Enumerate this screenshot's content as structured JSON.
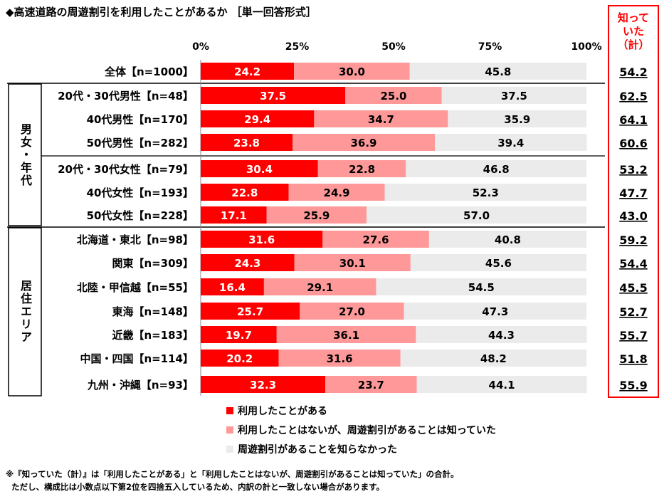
{
  "chart_data": {
    "type": "bar",
    "orientation": "horizontal",
    "stacked": true,
    "title": "◆高速道路の周遊割引を利用したことがあるか ［単一回答形式］",
    "x_ticks": [
      "0%",
      "25%",
      "50%",
      "75%",
      "100%"
    ],
    "xlim": [
      0,
      100
    ],
    "categories": [
      "全体【n=1000】",
      "20代・30代男性【n=48】",
      "40代男性【n=170】",
      "50代男性【n=282】",
      "20代・30代女性【n=79】",
      "40代女性【n=193】",
      "50代女性【n=228】",
      "北海道・東北【n=98】",
      "関東【n=309】",
      "北陸・甲信越【n=55】",
      "東海【n=148】",
      "近畿【n=183】",
      "中国・四国【n=114】",
      "九州・沖縄【n=93】"
    ],
    "groups": [
      {
        "label": "男女・年代",
        "rows": [
          1,
          6
        ]
      },
      {
        "label": "居住エリア",
        "rows": [
          7,
          13
        ]
      }
    ],
    "series": [
      {
        "name": "利用したことがある",
        "color": "#ff0000",
        "values": [
          24.2,
          37.5,
          29.4,
          23.8,
          30.4,
          22.8,
          17.1,
          31.6,
          24.3,
          16.4,
          25.7,
          19.7,
          20.2,
          32.3
        ]
      },
      {
        "name": "利用したことはないが、周遊割引があることは知っていた",
        "color": "#ff9999",
        "values": [
          30.0,
          25.0,
          34.7,
          36.9,
          22.8,
          24.9,
          25.9,
          27.6,
          30.1,
          29.1,
          27.0,
          36.1,
          31.6,
          23.7
        ]
      },
      {
        "name": "周遊割引があることを知らなかった",
        "color": "#ebebeb",
        "values": [
          45.8,
          37.5,
          35.9,
          39.4,
          46.8,
          52.3,
          57.0,
          40.8,
          45.6,
          54.5,
          47.3,
          44.3,
          48.2,
          44.1
        ]
      }
    ],
    "side_column": {
      "header": [
        "知って",
        "いた",
        "（計）"
      ],
      "color": "#ff0000",
      "values": [
        "54.2",
        "62.5",
        "64.1",
        "60.6",
        "53.2",
        "47.7",
        "43.0",
        "59.2",
        "54.4",
        "45.5",
        "52.7",
        "55.7",
        "51.8",
        "55.9"
      ]
    },
    "legend_position": "bottom",
    "grid": false
  },
  "notes": [
    "※『知っていた（計）』は「利用したことがある」と「利用したことはないが、周遊割引があることは知っていた」の合計。",
    "ただし、構成比は小数点以下第2位を四捨五入しているため、内訳の計と一致しない場合があります。"
  ]
}
